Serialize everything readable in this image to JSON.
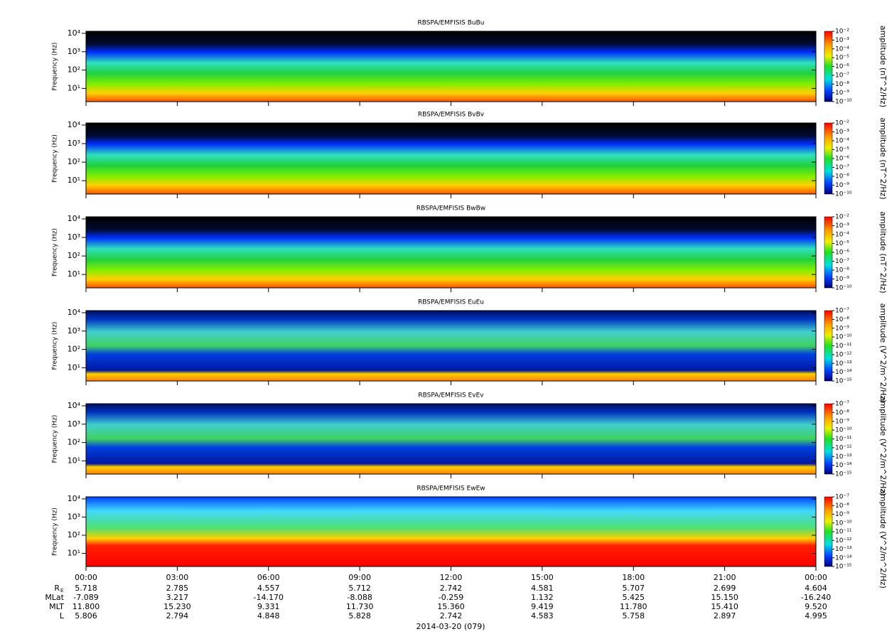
{
  "chart_data": [
    {
      "type": "spectrogram",
      "title": "RBSPA/EMFISIS  BuBu",
      "y_label": "Frequency (Hz)",
      "y_scale": "log",
      "ylim": [
        1.9,
        13000
      ],
      "yticks": [
        {
          "value": 10,
          "label": "10¹"
        },
        {
          "value": 100,
          "label": "10²"
        },
        {
          "value": 1000,
          "label": "10³"
        },
        {
          "value": 10000,
          "label": "10⁴"
        }
      ],
      "colorbar_label": "amplitude (nT^2/Hz)",
      "zlim": [
        1e-10,
        0.01
      ],
      "zticks": [
        {
          "value": 0.01,
          "label": "10⁻²"
        },
        {
          "value": 0.001,
          "label": "10⁻³"
        },
        {
          "value": 0.0001,
          "label": "10⁻⁴"
        },
        {
          "value": 1e-05,
          "label": "10⁻⁵"
        },
        {
          "value": 1e-06,
          "label": "10⁻⁶"
        },
        {
          "value": 1e-07,
          "label": "10⁻⁷"
        },
        {
          "value": 1e-08,
          "label": "10⁻⁸"
        },
        {
          "value": 1e-09,
          "label": "10⁻⁹"
        },
        {
          "value": 1e-10,
          "label": "10⁻¹⁰"
        }
      ]
    },
    {
      "type": "spectrogram",
      "title": "RBSPA/EMFISIS  BvBv",
      "y_label": "Frequency (Hz)",
      "y_scale": "log",
      "ylim": [
        1.9,
        13000
      ],
      "yticks": [
        {
          "value": 10,
          "label": "10¹"
        },
        {
          "value": 100,
          "label": "10²"
        },
        {
          "value": 1000,
          "label": "10³"
        },
        {
          "value": 10000,
          "label": "10⁴"
        }
      ],
      "colorbar_label": "amplitude (nT^2/Hz)",
      "zlim": [
        1e-10,
        0.01
      ],
      "zticks": [
        {
          "value": 0.01,
          "label": "10⁻²"
        },
        {
          "value": 0.001,
          "label": "10⁻³"
        },
        {
          "value": 0.0001,
          "label": "10⁻⁴"
        },
        {
          "value": 1e-05,
          "label": "10⁻⁵"
        },
        {
          "value": 1e-06,
          "label": "10⁻⁶"
        },
        {
          "value": 1e-07,
          "label": "10⁻⁷"
        },
        {
          "value": 1e-08,
          "label": "10⁻⁸"
        },
        {
          "value": 1e-09,
          "label": "10⁻⁹"
        },
        {
          "value": 1e-10,
          "label": "10⁻¹⁰"
        }
      ]
    },
    {
      "type": "spectrogram",
      "title": "RBSPA/EMFISIS  BwBw",
      "y_label": "Frequency (Hz)",
      "y_scale": "log",
      "ylim": [
        1.9,
        13000
      ],
      "yticks": [
        {
          "value": 10,
          "label": "10¹"
        },
        {
          "value": 100,
          "label": "10²"
        },
        {
          "value": 1000,
          "label": "10³"
        },
        {
          "value": 10000,
          "label": "10⁴"
        }
      ],
      "colorbar_label": "amplitude (nT^2/Hz)",
      "zlim": [
        1e-10,
        0.01
      ],
      "zticks": [
        {
          "value": 0.01,
          "label": "10⁻²"
        },
        {
          "value": 0.001,
          "label": "10⁻³"
        },
        {
          "value": 0.0001,
          "label": "10⁻⁴"
        },
        {
          "value": 1e-05,
          "label": "10⁻⁵"
        },
        {
          "value": 1e-06,
          "label": "10⁻⁶"
        },
        {
          "value": 1e-07,
          "label": "10⁻⁷"
        },
        {
          "value": 1e-08,
          "label": "10⁻⁸"
        },
        {
          "value": 1e-09,
          "label": "10⁻⁹"
        },
        {
          "value": 1e-10,
          "label": "10⁻¹⁰"
        }
      ]
    },
    {
      "type": "spectrogram",
      "title": "RBSPA/EMFISIS  EuEu",
      "y_label": "Frequency (Hz)",
      "y_scale": "log",
      "ylim": [
        1.9,
        13000
      ],
      "yticks": [
        {
          "value": 10,
          "label": "10¹"
        },
        {
          "value": 100,
          "label": "10²"
        },
        {
          "value": 1000,
          "label": "10³"
        },
        {
          "value": 10000,
          "label": "10⁴"
        }
      ],
      "colorbar_label": "amplitude (V^2/m^2/Hz)",
      "zlim": [
        1e-15,
        1e-07
      ],
      "zticks": [
        {
          "value": 1e-07,
          "label": "10⁻⁷"
        },
        {
          "value": 1e-08,
          "label": "10⁻⁸"
        },
        {
          "value": 1e-09,
          "label": "10⁻⁹"
        },
        {
          "value": 1e-10,
          "label": "10⁻¹⁰"
        },
        {
          "value": 1e-11,
          "label": "10⁻¹¹"
        },
        {
          "value": 1e-12,
          "label": "10⁻¹²"
        },
        {
          "value": 1e-13,
          "label": "10⁻¹³"
        },
        {
          "value": 1e-14,
          "label": "10⁻¹⁴"
        },
        {
          "value": 1e-15,
          "label": "10⁻¹⁵"
        }
      ]
    },
    {
      "type": "spectrogram",
      "title": "RBSPA/EMFISIS  EvEv",
      "y_label": "Frequency (Hz)",
      "y_scale": "log",
      "ylim": [
        1.9,
        13000
      ],
      "yticks": [
        {
          "value": 10,
          "label": "10¹"
        },
        {
          "value": 100,
          "label": "10²"
        },
        {
          "value": 1000,
          "label": "10³"
        },
        {
          "value": 10000,
          "label": "10⁴"
        }
      ],
      "colorbar_label": "amplitude (V^2/m^2/Hz)",
      "zlim": [
        1e-15,
        1e-07
      ],
      "zticks": [
        {
          "value": 1e-07,
          "label": "10⁻⁷"
        },
        {
          "value": 1e-08,
          "label": "10⁻⁸"
        },
        {
          "value": 1e-09,
          "label": "10⁻⁹"
        },
        {
          "value": 1e-10,
          "label": "10⁻¹⁰"
        },
        {
          "value": 1e-11,
          "label": "10⁻¹¹"
        },
        {
          "value": 1e-12,
          "label": "10⁻¹²"
        },
        {
          "value": 1e-13,
          "label": "10⁻¹³"
        },
        {
          "value": 1e-14,
          "label": "10⁻¹⁴"
        },
        {
          "value": 1e-15,
          "label": "10⁻¹⁵"
        }
      ]
    },
    {
      "type": "spectrogram",
      "title": "RBSPA/EMFISIS  EwEw",
      "y_label": "Frequency (Hz)",
      "y_scale": "log",
      "ylim": [
        1.9,
        13000
      ],
      "yticks": [
        {
          "value": 10,
          "label": "10¹"
        },
        {
          "value": 100,
          "label": "10²"
        },
        {
          "value": 1000,
          "label": "10³"
        },
        {
          "value": 10000,
          "label": "10⁴"
        }
      ],
      "colorbar_label": "amplitude (V^2/m^2/Hz)",
      "zlim": [
        1e-15,
        1e-07
      ],
      "zticks": [
        {
          "value": 1e-07,
          "label": "10⁻⁷"
        },
        {
          "value": 1e-08,
          "label": "10⁻⁸"
        },
        {
          "value": 1e-09,
          "label": "10⁻⁹"
        },
        {
          "value": 1e-10,
          "label": "10⁻¹⁰"
        },
        {
          "value": 1e-11,
          "label": "10⁻¹¹"
        },
        {
          "value": 1e-12,
          "label": "10⁻¹²"
        },
        {
          "value": 1e-13,
          "label": "10⁻¹³"
        },
        {
          "value": 1e-14,
          "label": "10⁻¹⁴"
        },
        {
          "value": 1e-15,
          "label": "10⁻¹⁵"
        }
      ],
      "xlim": [
        0,
        24
      ],
      "xticks": [
        {
          "value": 0,
          "label": "00:00"
        },
        {
          "value": 3,
          "label": "03:00"
        },
        {
          "value": 6,
          "label": "06:00"
        },
        {
          "value": 9,
          "label": "09:00"
        },
        {
          "value": 12,
          "label": "12:00"
        },
        {
          "value": 15,
          "label": "15:00"
        },
        {
          "value": 18,
          "label": "18:00"
        },
        {
          "value": 21,
          "label": "21:00"
        },
        {
          "value": 24,
          "label": "00:00"
        }
      ]
    }
  ],
  "ephemeris": {
    "rows": [
      {
        "label": "R",
        "subscript": "E",
        "values": [
          "5.718",
          "2.785",
          "4.557",
          "5.712",
          "2.742",
          "4.581",
          "5.707",
          "2.699",
          "4.604"
        ]
      },
      {
        "label": "MLat",
        "values": [
          "-7.089",
          "3.217",
          "-14.170",
          "-8.088",
          "-0.259",
          "1.132",
          "5.425",
          "15.150",
          "-16.240"
        ]
      },
      {
        "label": "MLT",
        "values": [
          "11.800",
          "15.230",
          "9.331",
          "11.730",
          "15.360",
          "9.419",
          "11.780",
          "15.410",
          "9.520"
        ]
      },
      {
        "label": "L",
        "values": [
          "5.806",
          "2.794",
          "4.848",
          "5.828",
          "2.742",
          "4.583",
          "5.758",
          "2.897",
          "4.995"
        ]
      }
    ],
    "date": "2014-03-20 (079)"
  }
}
